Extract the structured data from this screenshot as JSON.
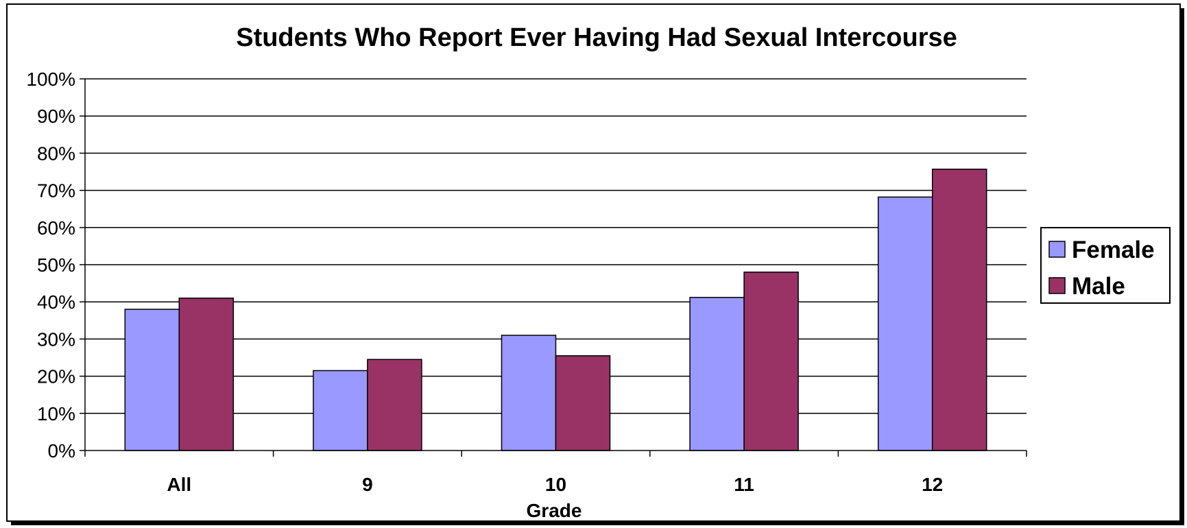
{
  "chart_data": {
    "type": "bar",
    "title": "Students Who Report Ever Having Had Sexual Intercourse",
    "xlabel": "Grade",
    "ylabel": "",
    "categories": [
      "All",
      "9",
      "10",
      "11",
      "12"
    ],
    "ylim": [
      0,
      100
    ],
    "yticks": [
      0,
      10,
      20,
      30,
      40,
      50,
      60,
      70,
      80,
      90,
      100
    ],
    "ytick_labels": [
      "0%",
      "10%",
      "20%",
      "30%",
      "40%",
      "50%",
      "60%",
      "70%",
      "80%",
      "90%",
      "100%"
    ],
    "grid": true,
    "legend_position": "right",
    "series": [
      {
        "name": "Female",
        "color": "#9999FF",
        "values": [
          38,
          21.5,
          31,
          41.2,
          68.2
        ]
      },
      {
        "name": "Male",
        "color": "#993366",
        "values": [
          41,
          24.5,
          25.5,
          48,
          75.7
        ]
      }
    ]
  }
}
